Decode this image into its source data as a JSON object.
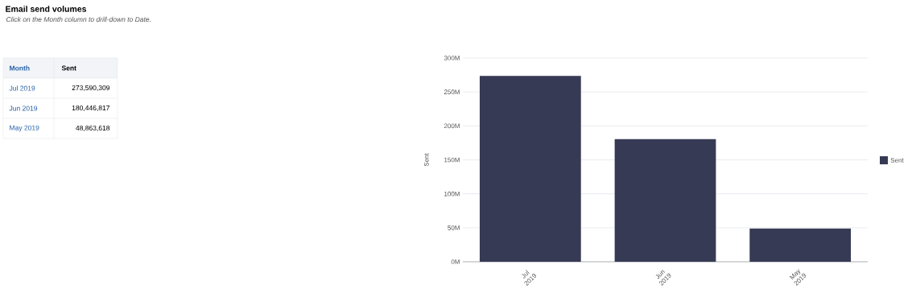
{
  "chart_data": {
    "type": "bar",
    "title": "Email send volumes",
    "subtitle": "Click on the Month column to drill-down to Date.",
    "annotations": [
      "Month"
    ],
    "categories": [
      "Jul 2019",
      "Jun 2019",
      "May 2019"
    ],
    "series": [
      {
        "name": "Sent",
        "color": "#363a54",
        "values": [
          273590309,
          180446817,
          48863618
        ]
      }
    ],
    "value_labels": [
      "273,590,309",
      "180,446,817",
      "48,863,618"
    ],
    "ylabel": "Sent",
    "ylim": [
      0,
      300000000
    ],
    "yticks": [
      {
        "value": 0,
        "label": "0M"
      },
      {
        "value": 50000000,
        "label": "50M"
      },
      {
        "value": 100000000,
        "label": "100M"
      },
      {
        "value": 150000000,
        "label": "150M"
      },
      {
        "value": 200000000,
        "label": "200M"
      },
      {
        "value": 250000000,
        "label": "250M"
      },
      {
        "value": 300000000,
        "label": "300M"
      }
    ],
    "grid": "y",
    "legend": "right"
  }
}
